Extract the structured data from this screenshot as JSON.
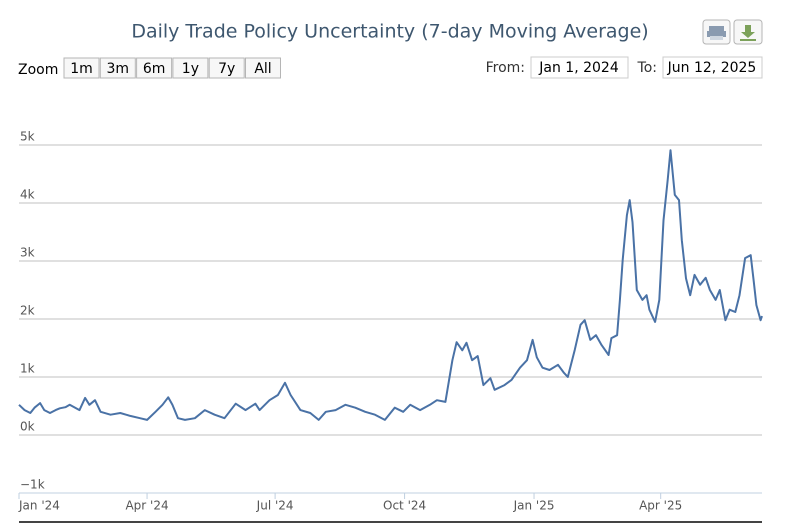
{
  "range_selector": {
    "label": "Zoom",
    "buttons": [
      "1m",
      "3m",
      "6m",
      "1y",
      "7y",
      "All"
    ],
    "from_label": "From:",
    "from": "Jan 1, 2024",
    "to_label": "To:",
    "to": "Jun 12, 2025"
  },
  "chart_data": {
    "type": "line",
    "title": "Daily Trade Policy Uncertainty (7-day Moving Average)",
    "color": "#4a72a6",
    "grid": true,
    "xlim": [
      0,
      528
    ],
    "xticks": [
      {
        "value": 0,
        "label": "Jan '24"
      },
      {
        "value": 91,
        "label": "Apr '24"
      },
      {
        "value": 182,
        "label": "Jul '24"
      },
      {
        "value": 274,
        "label": "Oct '24"
      },
      {
        "value": 366,
        "label": "Jan '25"
      },
      {
        "value": 456,
        "label": "Apr '25"
      }
    ],
    "ylim": [
      -1000,
      5000
    ],
    "yticks": [
      {
        "value": -1000,
        "label": "−1k"
      },
      {
        "value": 0,
        "label": "0k"
      },
      {
        "value": 1000,
        "label": "1k"
      },
      {
        "value": 2000,
        "label": "2k"
      },
      {
        "value": 3000,
        "label": "3k"
      },
      {
        "value": 4000,
        "label": "4k"
      },
      {
        "value": 5000,
        "label": "5k"
      }
    ],
    "x": [
      0,
      4,
      8,
      11,
      15,
      18,
      22,
      26,
      29,
      33,
      36,
      43,
      47,
      50,
      54,
      58,
      65,
      72,
      79,
      86,
      91,
      97,
      102,
      106,
      109,
      113,
      118,
      125,
      132,
      139,
      146,
      154,
      161,
      168,
      171,
      178,
      184,
      189,
      193,
      200,
      207,
      213,
      218,
      225,
      232,
      239,
      246,
      253,
      260,
      267,
      273,
      278,
      285,
      292,
      297,
      303,
      308,
      311,
      315,
      318,
      322,
      326,
      330,
      335,
      338,
      345,
      350,
      356,
      361,
      365,
      368,
      372,
      377,
      383,
      387,
      390,
      395,
      399,
      402,
      406,
      410,
      414,
      419,
      421,
      425,
      427,
      429,
      432,
      434,
      436,
      439,
      443,
      446,
      448,
      452,
      455,
      458,
      461,
      463,
      466,
      469,
      471,
      474,
      477,
      480,
      484,
      488,
      491,
      495,
      498,
      502,
      505,
      509,
      512,
      516,
      520,
      522,
      524,
      527,
      528
    ],
    "values": [
      520,
      430,
      380,
      470,
      550,
      430,
      380,
      430,
      460,
      480,
      520,
      430,
      640,
      520,
      600,
      400,
      350,
      380,
      330,
      290,
      260,
      400,
      520,
      650,
      520,
      290,
      260,
      290,
      430,
      350,
      290,
      540,
      430,
      540,
      430,
      600,
      690,
      900,
      690,
      430,
      380,
      260,
      400,
      430,
      520,
      470,
      400,
      350,
      260,
      470,
      400,
      520,
      430,
      520,
      600,
      570,
      1290,
      1600,
      1460,
      1590,
      1290,
      1360,
      860,
      980,
      780,
      860,
      950,
      1160,
      1290,
      1640,
      1340,
      1160,
      1120,
      1210,
      1080,
      1000,
      1470,
      1900,
      1980,
      1640,
      1720,
      1550,
      1380,
      1670,
      1720,
      2330,
      3020,
      3790,
      4050,
      3670,
      2500,
      2330,
      2410,
      2160,
      1950,
      2330,
      3700,
      4400,
      4910,
      4140,
      4050,
      3360,
      2700,
      2410,
      2760,
      2590,
      2710,
      2500,
      2330,
      2500,
      1980,
      2160,
      2120,
      2410,
      3050,
      3100,
      2670,
      2240,
      1980,
      2050
    ]
  }
}
